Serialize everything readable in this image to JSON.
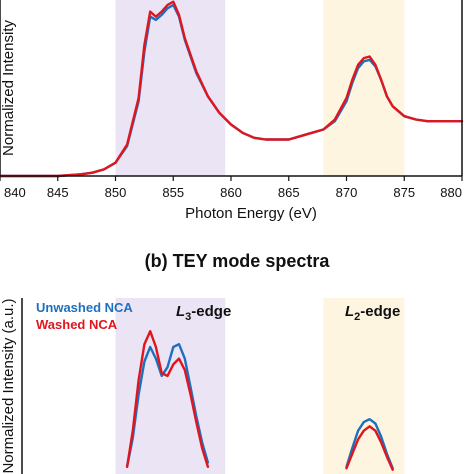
{
  "colors": {
    "unwashed": "#1f6fbf",
    "washed": "#e0161e",
    "l3_band": "#ebe4f4",
    "l2_band": "#fdf5df",
    "axis": "#111111"
  },
  "chart_data": [
    {
      "type": "line",
      "panel": "top",
      "ylabel": "Normalized Intensity",
      "xlabel": "Photon Energy (eV)",
      "xlim": [
        840,
        880
      ],
      "xticks": [
        "840",
        "845",
        "850",
        "855",
        "860",
        "865",
        "870",
        "875",
        "880"
      ],
      "shaded_regions": [
        {
          "x0": 850,
          "x1": 859.5,
          "color": "l3_band"
        },
        {
          "x0": 868,
          "x1": 875,
          "color": "l2_band"
        }
      ],
      "series": [
        {
          "color": "unwashed",
          "x": [
            840,
            845,
            847,
            848,
            849,
            850,
            851,
            852,
            852.5,
            853,
            853.5,
            854,
            854.5,
            855,
            855.5,
            856,
            857,
            858,
            859,
            860,
            861,
            862,
            863,
            864,
            865,
            866,
            867,
            868,
            869,
            870,
            870.5,
            871,
            871.5,
            872,
            872.5,
            873,
            873.5,
            874,
            875,
            876,
            877,
            878,
            879,
            880
          ],
          "y": [
            0.0,
            0.0,
            0.01,
            0.02,
            0.04,
            0.08,
            0.18,
            0.45,
            0.75,
            0.96,
            0.94,
            0.97,
            1.01,
            1.03,
            0.96,
            0.82,
            0.62,
            0.48,
            0.38,
            0.31,
            0.26,
            0.23,
            0.22,
            0.22,
            0.22,
            0.24,
            0.26,
            0.28,
            0.33,
            0.45,
            0.56,
            0.65,
            0.69,
            0.7,
            0.66,
            0.58,
            0.48,
            0.42,
            0.36,
            0.34,
            0.33,
            0.33,
            0.33,
            0.33
          ]
        },
        {
          "color": "washed",
          "x": [
            840,
            845,
            847,
            848,
            849,
            850,
            851,
            852,
            852.5,
            853,
            853.5,
            854,
            854.5,
            855,
            855.5,
            856,
            857,
            858,
            859,
            860,
            861,
            862,
            863,
            864,
            865,
            866,
            867,
            868,
            869,
            870,
            870.5,
            871,
            871.5,
            872,
            872.5,
            873,
            873.5,
            874,
            875,
            876,
            877,
            878,
            879,
            880
          ],
          "y": [
            0.0,
            0.0,
            0.01,
            0.02,
            0.04,
            0.08,
            0.19,
            0.47,
            0.79,
            0.99,
            0.96,
            0.99,
            1.03,
            1.05,
            0.97,
            0.83,
            0.63,
            0.48,
            0.38,
            0.31,
            0.26,
            0.23,
            0.22,
            0.22,
            0.22,
            0.24,
            0.26,
            0.28,
            0.34,
            0.47,
            0.58,
            0.67,
            0.71,
            0.72,
            0.67,
            0.58,
            0.48,
            0.42,
            0.36,
            0.34,
            0.33,
            0.33,
            0.33,
            0.33
          ]
        }
      ]
    },
    {
      "type": "line",
      "panel": "bottom",
      "title": "(b) TEY mode spectra",
      "ylabel": "Normalized Intensity (a.u.)",
      "xlim": [
        840,
        880
      ],
      "shaded_regions": [
        {
          "x0": 850,
          "x1": 859.5,
          "color": "l3_band"
        },
        {
          "x0": 868,
          "x1": 875,
          "color": "l2_band"
        }
      ],
      "legend": {
        "placement": "top-left",
        "entries": [
          {
            "label": "Unwashed NCA",
            "color": "unwashed"
          },
          {
            "label": "Washed NCA",
            "color": "washed"
          }
        ]
      },
      "annotations": [
        {
          "label_main": "L",
          "label_sub": "3",
          "label_rest": "-edge"
        },
        {
          "label_main": "L",
          "label_sub": "2",
          "label_rest": "-edge"
        }
      ],
      "series": [
        {
          "color": "unwashed",
          "x": [
            851,
            851.5,
            852,
            852.5,
            853,
            853.5,
            854,
            854.5,
            855,
            855.5,
            856,
            856.5,
            857,
            857.5,
            858,
            870,
            870.5,
            871,
            871.5,
            872,
            872.5,
            873,
            873.5,
            874
          ],
          "y": [
            0.05,
            0.25,
            0.55,
            0.78,
            0.88,
            0.8,
            0.68,
            0.74,
            0.88,
            0.9,
            0.8,
            0.6,
            0.4,
            0.22,
            0.08,
            0.05,
            0.18,
            0.3,
            0.36,
            0.38,
            0.35,
            0.26,
            0.14,
            0.04
          ]
        },
        {
          "color": "washed",
          "x": [
            851,
            851.5,
            852,
            852.5,
            853,
            853.5,
            854,
            854.5,
            855,
            855.5,
            856,
            856.5,
            857,
            857.5,
            858,
            870,
            870.5,
            871,
            871.5,
            872,
            872.5,
            873,
            873.5,
            874
          ],
          "y": [
            0.05,
            0.3,
            0.65,
            0.9,
            0.99,
            0.88,
            0.7,
            0.68,
            0.76,
            0.8,
            0.72,
            0.55,
            0.36,
            0.18,
            0.05,
            0.04,
            0.14,
            0.24,
            0.3,
            0.33,
            0.3,
            0.22,
            0.12,
            0.03
          ]
        }
      ]
    }
  ]
}
